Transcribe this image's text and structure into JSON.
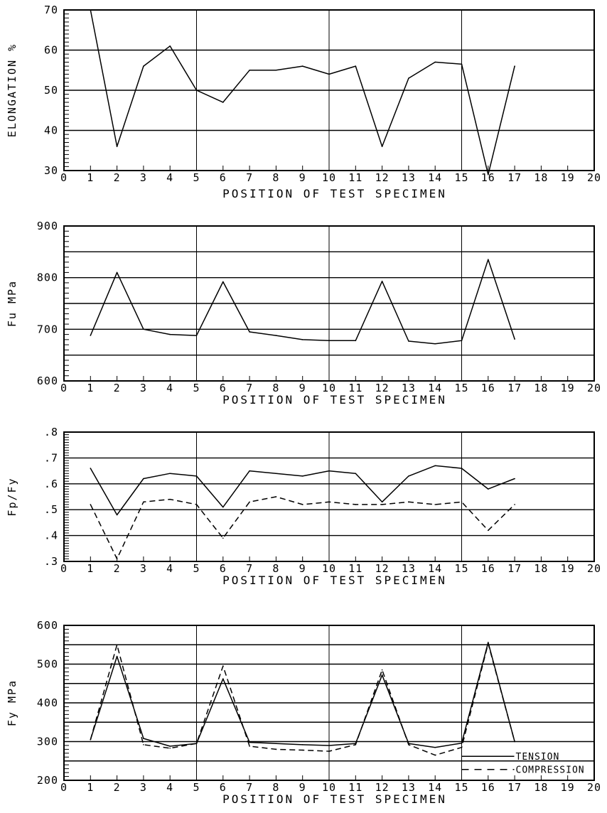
{
  "chart_data": [
    {
      "type": "line",
      "title": "",
      "xlabel": "POSITION OF TEST SPECIMEN",
      "ylabel": "ELONGATION %",
      "xlim": [
        0,
        20
      ],
      "ylim": [
        30,
        70
      ],
      "x_ticks": [
        "0",
        "1",
        "2",
        "3",
        "4",
        "5",
        "6",
        "7",
        "8",
        "9",
        "10",
        "11",
        "12",
        "13",
        "14",
        "15",
        "16",
        "17",
        "18",
        "19",
        "20"
      ],
      "y_ticks": [
        "30",
        "40",
        "50",
        "60",
        "70"
      ],
      "y_tick_values": [
        30,
        40,
        50,
        60,
        70
      ],
      "grid": {
        "horizontal": [
          40,
          50,
          60
        ],
        "vertical": [
          5,
          10,
          15
        ]
      },
      "series": [
        {
          "style": "solid",
          "x": [
            1,
            2,
            3,
            4,
            5,
            6,
            7,
            8,
            9,
            10,
            11,
            12,
            13,
            14,
            15,
            16,
            17
          ],
          "y": [
            70,
            36,
            56,
            61,
            50,
            47,
            55,
            55,
            56,
            54,
            56,
            36,
            53,
            57,
            56.5,
            29,
            56
          ]
        }
      ]
    },
    {
      "type": "line",
      "title": "",
      "xlabel": "POSITION OF TEST SPECIMEN",
      "ylabel": "Fu MPa",
      "xlim": [
        0,
        20
      ],
      "ylim": [
        600,
        900
      ],
      "x_ticks": [
        "0",
        "1",
        "2",
        "3",
        "4",
        "5",
        "6",
        "7",
        "8",
        "9",
        "10",
        "11",
        "12",
        "13",
        "14",
        "15",
        "16",
        "17",
        "18",
        "19",
        "20"
      ],
      "y_ticks": [
        "600",
        "700",
        "800",
        "900"
      ],
      "y_tick_values": [
        600,
        700,
        800,
        900
      ],
      "grid": {
        "horizontal": [
          650,
          700,
          750,
          800,
          850
        ],
        "vertical": [
          5,
          10,
          15
        ]
      },
      "series": [
        {
          "style": "solid",
          "x": [
            1,
            2,
            3,
            4,
            5,
            6,
            7,
            8,
            9,
            10,
            11,
            12,
            13,
            14,
            15,
            16,
            17
          ],
          "y": [
            688,
            810,
            700,
            690,
            688,
            792,
            695,
            688,
            680,
            678,
            678,
            793,
            677,
            672,
            678,
            835,
            681
          ]
        }
      ]
    },
    {
      "type": "line",
      "title": "",
      "xlabel": "POSITION OF TEST SPECIMEN",
      "ylabel": "Fp/Fy",
      "xlim": [
        0,
        20
      ],
      "ylim": [
        0.3,
        0.8
      ],
      "x_ticks": [
        "0",
        "1",
        "2",
        "3",
        "4",
        "5",
        "6",
        "7",
        "8",
        "9",
        "10",
        "11",
        "12",
        "13",
        "14",
        "15",
        "16",
        "17",
        "18",
        "19",
        "20"
      ],
      "y_ticks": [
        ".3",
        ".4",
        ".5",
        ".6",
        ".7",
        ".8"
      ],
      "y_tick_values": [
        0.3,
        0.4,
        0.5,
        0.6,
        0.7,
        0.8
      ],
      "grid": {
        "horizontal": [
          0.4,
          0.5,
          0.6,
          0.7
        ],
        "vertical": [
          5,
          10,
          15
        ]
      },
      "series": [
        {
          "style": "solid",
          "x": [
            1,
            2,
            3,
            4,
            5,
            6,
            7,
            8,
            9,
            10,
            11,
            12,
            13,
            14,
            15,
            16,
            17
          ],
          "y": [
            0.66,
            0.48,
            0.62,
            0.64,
            0.63,
            0.51,
            0.65,
            0.64,
            0.63,
            0.65,
            0.64,
            0.53,
            0.63,
            0.67,
            0.66,
            0.58,
            0.62
          ]
        },
        {
          "style": "dashed",
          "x": [
            1,
            2,
            3,
            4,
            5,
            6,
            7,
            8,
            9,
            10,
            11,
            12,
            13,
            14,
            15,
            16,
            17
          ],
          "y": [
            0.52,
            0.31,
            0.53,
            0.54,
            0.52,
            0.39,
            0.53,
            0.55,
            0.52,
            0.53,
            0.52,
            0.52,
            0.53,
            0.52,
            0.53,
            0.42,
            0.52
          ]
        }
      ]
    },
    {
      "type": "line",
      "title": "",
      "xlabel": "POSITION OF TEST SPECIMEN",
      "ylabel": "Fy MPa",
      "xlim": [
        0,
        20
      ],
      "ylim": [
        200,
        600
      ],
      "x_ticks": [
        "0",
        "1",
        "2",
        "3",
        "4",
        "5",
        "6",
        "7",
        "8",
        "9",
        "10",
        "11",
        "12",
        "13",
        "14",
        "15",
        "16",
        "17",
        "18",
        "19",
        "20"
      ],
      "y_ticks": [
        "200",
        "300",
        "400",
        "500",
        "600"
      ],
      "y_tick_values": [
        200,
        300,
        400,
        500,
        600
      ],
      "grid": {
        "horizontal": [
          250,
          300,
          350,
          400,
          450,
          500,
          550
        ],
        "vertical": [
          5,
          10,
          15
        ]
      },
      "legend_position": "bottom-right",
      "series": [
        {
          "name": "TENSION",
          "style": "solid",
          "x": [
            1,
            2,
            3,
            4,
            5,
            6,
            7,
            8,
            9,
            10,
            11,
            12,
            13,
            14,
            15,
            16,
            17
          ],
          "y": [
            305,
            520,
            308,
            288,
            295,
            462,
            298,
            295,
            292,
            290,
            295,
            472,
            295,
            285,
            296,
            556,
            300
          ]
        },
        {
          "name": "COMPRESSION",
          "style": "dashed",
          "x": [
            1,
            2,
            3,
            4,
            5,
            6,
            7,
            8,
            9,
            10,
            11,
            12,
            13,
            14,
            15,
            16,
            17
          ],
          "y": [
            305,
            550,
            292,
            283,
            295,
            495,
            288,
            280,
            278,
            275,
            292,
            485,
            292,
            265,
            285,
            553,
            300
          ]
        }
      ]
    }
  ]
}
